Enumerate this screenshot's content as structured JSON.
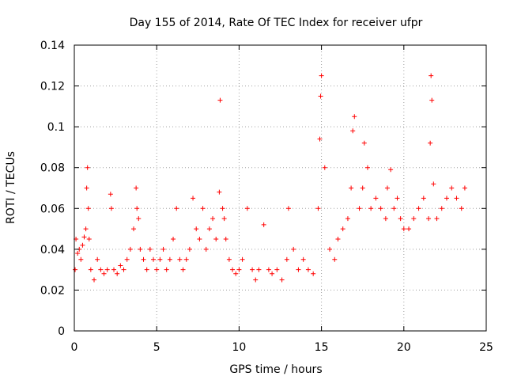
{
  "chart_data": {
    "type": "scatter",
    "title": "Day 155 of 2014, Rate Of TEC Index for receiver ufpr",
    "xlabel": "GPS time / hours",
    "ylabel": "ROTI / TECUs",
    "xlim": [
      0,
      25
    ],
    "ylim": [
      0,
      0.14
    ],
    "x_ticks": [
      "0",
      "5",
      "10",
      "15",
      "20",
      "25"
    ],
    "y_ticks": [
      "0",
      "0.02",
      "0.04",
      "0.06",
      "0.08",
      "0.1",
      "0.12",
      "0.14"
    ],
    "grid": true,
    "marker": "+",
    "color": "#ff0000",
    "series": [
      {
        "name": "ROTI",
        "x": [
          0.05,
          0.1,
          0.2,
          0.3,
          0.4,
          0.5,
          0.6,
          0.7,
          0.75,
          0.8,
          0.85,
          0.9,
          1.0,
          1.2,
          1.4,
          1.6,
          1.8,
          2.0,
          2.2,
          2.25,
          2.4,
          2.6,
          2.8,
          3.0,
          3.2,
          3.4,
          3.6,
          3.75,
          3.8,
          3.9,
          4.0,
          4.2,
          4.4,
          4.6,
          4.8,
          5.0,
          5.2,
          5.4,
          5.6,
          5.8,
          6.0,
          6.2,
          6.4,
          6.6,
          6.8,
          7.0,
          7.2,
          7.4,
          7.6,
          7.8,
          8.0,
          8.2,
          8.4,
          8.6,
          8.8,
          8.85,
          9.0,
          9.1,
          9.2,
          9.4,
          9.6,
          9.8,
          10.0,
          10.2,
          10.5,
          10.8,
          11.0,
          11.2,
          11.5,
          11.8,
          12.0,
          12.3,
          12.6,
          12.9,
          13.0,
          13.3,
          13.6,
          13.9,
          14.2,
          14.5,
          14.8,
          14.9,
          14.95,
          15.0,
          15.2,
          15.5,
          15.8,
          16.0,
          16.3,
          16.6,
          16.8,
          16.9,
          17.0,
          17.3,
          17.5,
          17.6,
          17.8,
          18.0,
          18.3,
          18.6,
          18.9,
          19.0,
          19.2,
          19.4,
          19.6,
          19.8,
          20.0,
          20.3,
          20.6,
          20.9,
          21.2,
          21.5,
          21.6,
          21.65,
          21.7,
          21.8,
          22.0,
          22.3,
          22.6,
          22.9,
          23.2,
          23.5,
          23.7
        ],
        "y": [
          0.03,
          0.045,
          0.038,
          0.04,
          0.035,
          0.042,
          0.046,
          0.05,
          0.07,
          0.08,
          0.06,
          0.045,
          0.03,
          0.025,
          0.035,
          0.03,
          0.028,
          0.03,
          0.067,
          0.06,
          0.03,
          0.028,
          0.032,
          0.03,
          0.035,
          0.04,
          0.05,
          0.07,
          0.06,
          0.055,
          0.04,
          0.035,
          0.03,
          0.04,
          0.035,
          0.03,
          0.035,
          0.04,
          0.03,
          0.035,
          0.045,
          0.06,
          0.035,
          0.03,
          0.035,
          0.04,
          0.065,
          0.05,
          0.045,
          0.06,
          0.04,
          0.05,
          0.055,
          0.045,
          0.068,
          0.113,
          0.06,
          0.055,
          0.045,
          0.035,
          0.03,
          0.028,
          0.03,
          0.035,
          0.06,
          0.03,
          0.025,
          0.03,
          0.052,
          0.03,
          0.028,
          0.03,
          0.025,
          0.035,
          0.06,
          0.04,
          0.03,
          0.035,
          0.03,
          0.028,
          0.06,
          0.094,
          0.115,
          0.125,
          0.08,
          0.04,
          0.035,
          0.045,
          0.05,
          0.055,
          0.07,
          0.098,
          0.105,
          0.06,
          0.07,
          0.092,
          0.08,
          0.06,
          0.065,
          0.06,
          0.055,
          0.07,
          0.079,
          0.06,
          0.065,
          0.055,
          0.05,
          0.05,
          0.055,
          0.06,
          0.065,
          0.055,
          0.092,
          0.125,
          0.113,
          0.072,
          0.055,
          0.06,
          0.065,
          0.07,
          0.065,
          0.06,
          0.07
        ]
      }
    ]
  }
}
